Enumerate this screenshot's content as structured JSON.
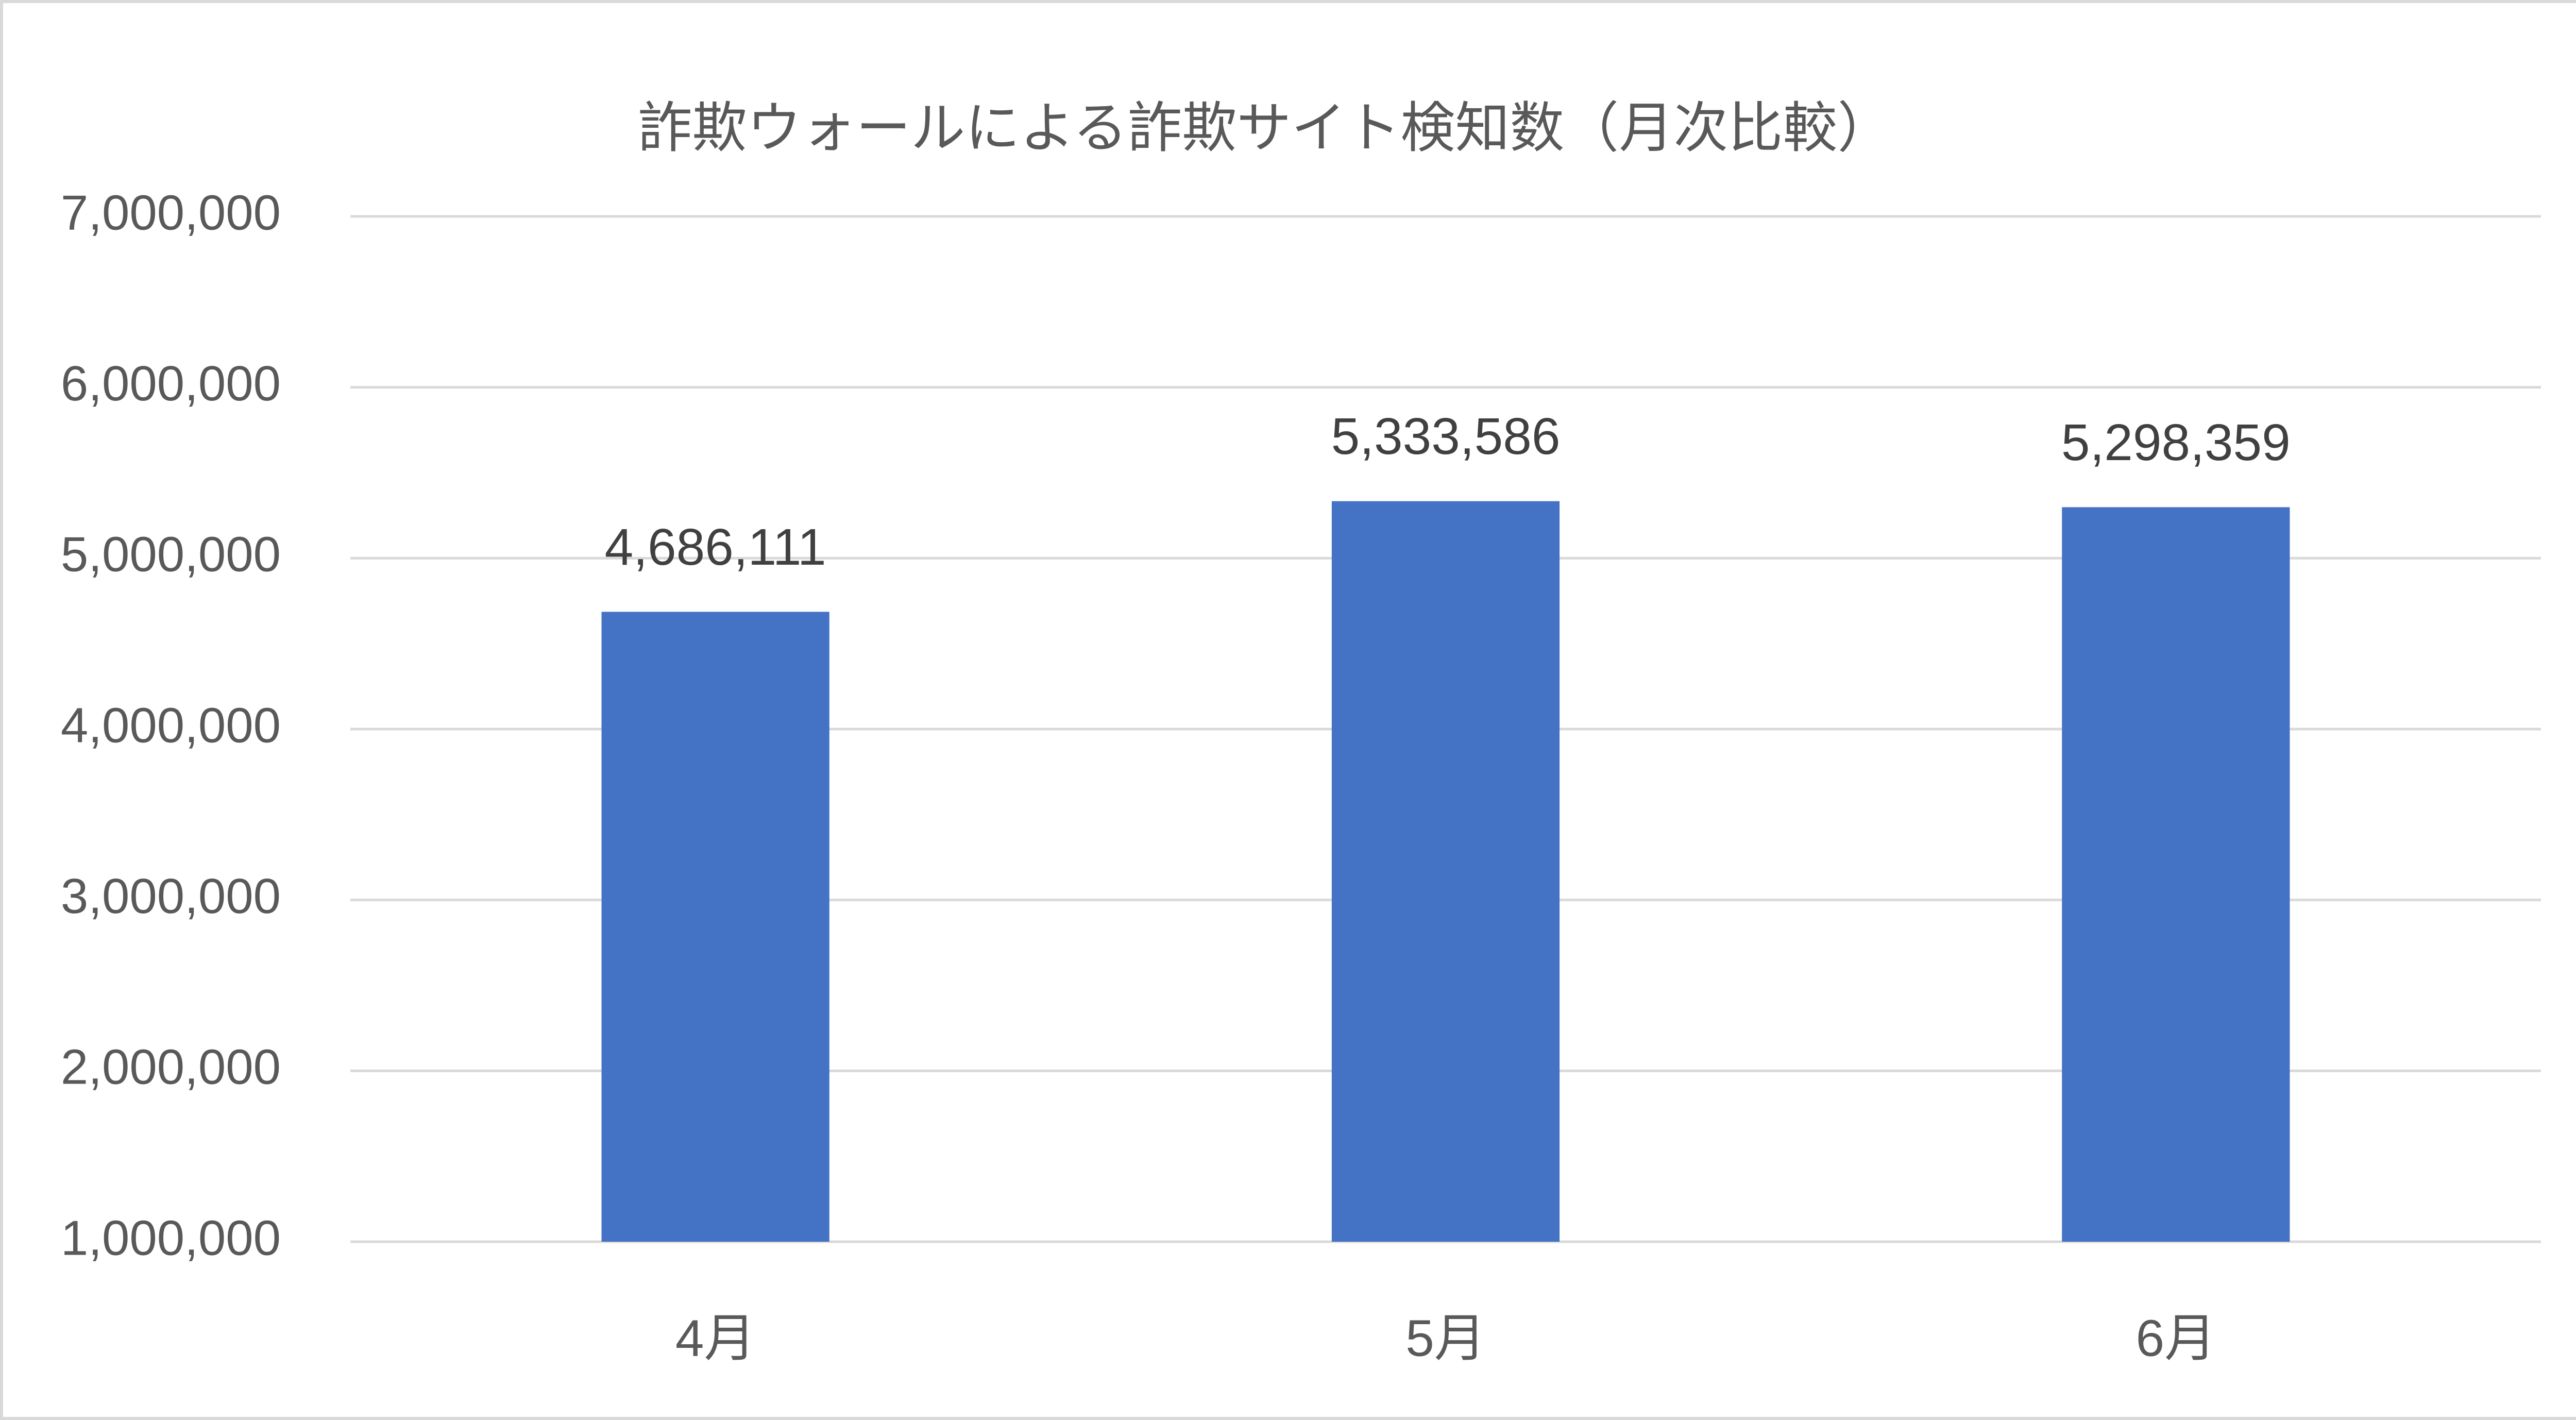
{
  "chart_data": {
    "type": "bar",
    "title": "詐欺ウォールによる詐欺サイト検知数（月次比較）",
    "categories": [
      "4月",
      "5月",
      "6月"
    ],
    "values": [
      4686111,
      5333586,
      5298359
    ],
    "value_labels": [
      "4,686,111",
      "5,333,586",
      "5,298,359"
    ],
    "color": "#4472c4",
    "ylim": [
      1000000,
      7000000
    ],
    "yticks": [
      {
        "value": 1000000,
        "label": "1,000,000"
      },
      {
        "value": 2000000,
        "label": "2,000,000"
      },
      {
        "value": 3000000,
        "label": "3,000,000"
      },
      {
        "value": 4000000,
        "label": "4,000,000"
      },
      {
        "value": 5000000,
        "label": "5,000,000"
      },
      {
        "value": 6000000,
        "label": "6,000,000"
      },
      {
        "value": 7000000,
        "label": "7,000,000"
      }
    ],
    "grid": true
  }
}
